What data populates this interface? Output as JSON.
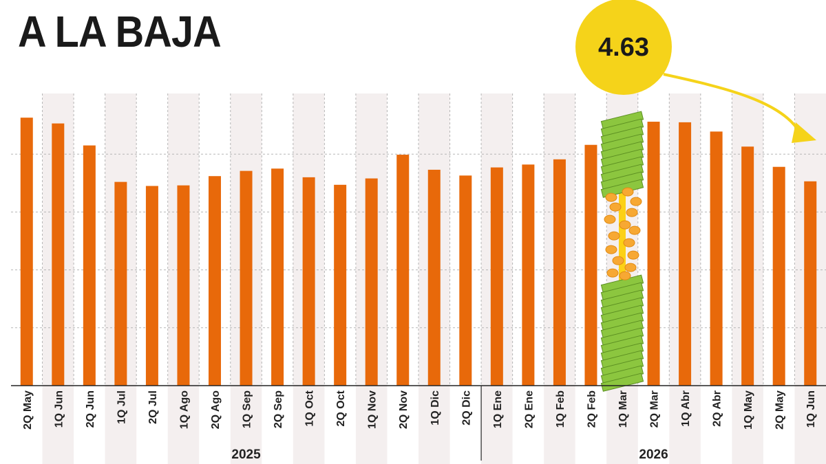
{
  "chart_data": {
    "type": "bar",
    "title": "A LA BAJA",
    "categories": [
      "2Q May",
      "1Q Jun",
      "2Q Jun",
      "1Q Jul",
      "2Q Jul",
      "1Q Ago",
      "2Q Ago",
      "1Q Sep",
      "2Q Sep",
      "1Q Oct",
      "2Q Oct",
      "1Q Nov",
      "2Q Nov",
      "1Q Dic",
      "2Q Dic",
      "1Q Ene",
      "2Q Ene",
      "1Q Feb",
      "2Q Feb",
      "1Q Mar",
      "2Q Mar",
      "1Q Abr",
      "2Q Abr",
      "1Q May",
      "2Q May",
      "1Q Jun"
    ],
    "values": [
      4.63,
      4.53,
      4.15,
      3.52,
      3.45,
      3.46,
      3.62,
      3.71,
      3.75,
      3.6,
      3.47,
      3.58,
      3.99,
      3.73,
      3.63,
      3.77,
      3.82,
      3.91,
      4.16,
      4.63,
      4.56,
      4.55,
      4.39,
      4.13,
      3.78,
      3.53
    ],
    "highlight": {
      "index": 19,
      "label": "4.63"
    },
    "groups": [
      {
        "label": "2025",
        "start": 0,
        "end": 14
      },
      {
        "label": "2026",
        "start": 15,
        "end": 25
      }
    ],
    "ylim": [
      0,
      5
    ],
    "grid": true,
    "colors": {
      "bar": "#e8690a",
      "highlight_bills": "#8cc63f",
      "highlight_coins": "#f7a833",
      "callout": "#f5d31a",
      "stripe": "#f4efef",
      "text": "#222222"
    }
  }
}
